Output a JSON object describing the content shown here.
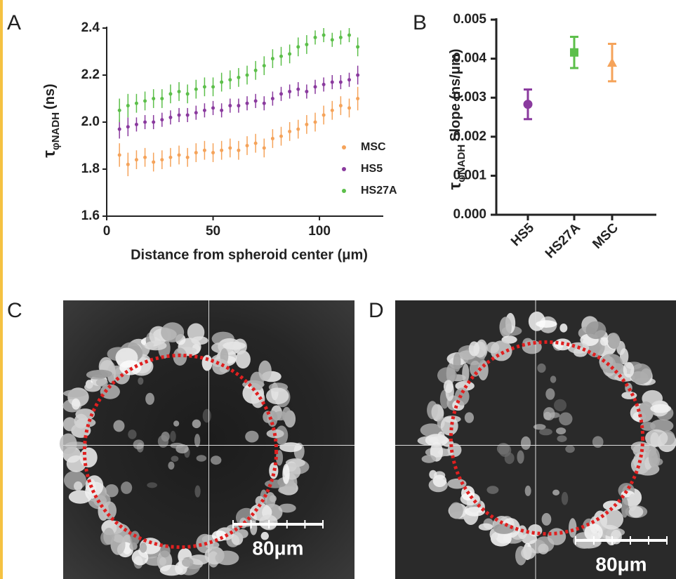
{
  "panels": {
    "labels": [
      "A",
      "B",
      "C",
      "D"
    ],
    "scale_bars": [
      "80μm",
      "80μm"
    ]
  },
  "chart_data": [
    {
      "type": "scatter",
      "x_label": "Distance from spheroid center (μm)",
      "y_label": [
        "τ",
        "φNADH",
        "(ns)"
      ],
      "x": [
        6,
        10,
        14,
        18,
        22,
        26,
        30,
        34,
        38,
        42,
        46,
        50,
        54,
        58,
        62,
        66,
        70,
        74,
        78,
        82,
        86,
        90,
        94,
        98,
        102,
        106,
        110,
        114,
        118
      ],
      "series": [
        {
          "name": "MSC",
          "color": "#f5a35a",
          "values": [
            1.86,
            1.82,
            1.84,
            1.85,
            1.83,
            1.84,
            1.85,
            1.86,
            1.85,
            1.87,
            1.88,
            1.87,
            1.88,
            1.89,
            1.88,
            1.9,
            1.91,
            1.89,
            1.93,
            1.94,
            1.96,
            1.97,
            1.99,
            2.0,
            2.03,
            2.05,
            2.07,
            2.06,
            2.1
          ],
          "errors": [
            0.05,
            0.05,
            0.04,
            0.04,
            0.04,
            0.04,
            0.04,
            0.04,
            0.04,
            0.04,
            0.04,
            0.04,
            0.04,
            0.04,
            0.04,
            0.04,
            0.04,
            0.04,
            0.04,
            0.04,
            0.04,
            0.04,
            0.04,
            0.04,
            0.04,
            0.04,
            0.04,
            0.04,
            0.05
          ]
        },
        {
          "name": "HS5",
          "color": "#8a3a9e",
          "values": [
            1.97,
            1.98,
            1.99,
            2.0,
            2.0,
            2.01,
            2.02,
            2.03,
            2.03,
            2.04,
            2.05,
            2.06,
            2.05,
            2.07,
            2.07,
            2.08,
            2.09,
            2.08,
            2.1,
            2.12,
            2.13,
            2.14,
            2.13,
            2.15,
            2.16,
            2.17,
            2.17,
            2.18,
            2.2
          ],
          "errors": [
            0.04,
            0.04,
            0.03,
            0.03,
            0.03,
            0.03,
            0.03,
            0.03,
            0.03,
            0.03,
            0.03,
            0.03,
            0.03,
            0.03,
            0.03,
            0.03,
            0.03,
            0.03,
            0.03,
            0.03,
            0.03,
            0.03,
            0.03,
            0.03,
            0.03,
            0.03,
            0.03,
            0.03,
            0.04
          ]
        },
        {
          "name": "HS27A",
          "color": "#5cbf4a",
          "values": [
            2.05,
            2.07,
            2.08,
            2.09,
            2.1,
            2.1,
            2.12,
            2.13,
            2.12,
            2.14,
            2.15,
            2.15,
            2.17,
            2.18,
            2.19,
            2.2,
            2.22,
            2.24,
            2.27,
            2.28,
            2.29,
            2.32,
            2.33,
            2.36,
            2.37,
            2.35,
            2.36,
            2.37,
            2.32
          ],
          "errors": [
            0.05,
            0.05,
            0.04,
            0.04,
            0.04,
            0.04,
            0.04,
            0.04,
            0.04,
            0.04,
            0.04,
            0.04,
            0.04,
            0.04,
            0.04,
            0.04,
            0.04,
            0.04,
            0.04,
            0.04,
            0.04,
            0.04,
            0.04,
            0.03,
            0.03,
            0.03,
            0.03,
            0.03,
            0.04
          ]
        }
      ],
      "xlim": [
        0,
        130
      ],
      "xticks": [
        0,
        50,
        100
      ],
      "ylim": [
        1.6,
        2.4
      ],
      "yticks": [
        1.6,
        1.8,
        {
          "value": 2,
          "label": "2.0"
        },
        2.2,
        2.4
      ],
      "legend": "lower-right"
    },
    {
      "type": "dot",
      "y_label": [
        "τ",
        "φNADH",
        "Slope (ns/μm)"
      ],
      "categories": [
        "HS5",
        "HS27A",
        "MSC"
      ],
      "values": [
        0.00283,
        0.00416,
        0.0039
      ],
      "errors": [
        0.00038,
        0.0004,
        0.00048
      ],
      "colors": [
        "#8a3a9e",
        "#5cbf4a",
        "#f5a35a"
      ],
      "markers": [
        "circle",
        "square",
        "triangle"
      ],
      "ylim": [
        0,
        0.005
      ],
      "yticks": [
        {
          "value": 0,
          "label": "0.000"
        },
        {
          "value": 0.001,
          "label": "0.001"
        },
        {
          "value": 0.002,
          "label": "0.002"
        },
        {
          "value": 0.003,
          "label": "0.003"
        },
        {
          "value": 0.004,
          "label": "0.004"
        },
        {
          "value": 0.005,
          "label": "0.005"
        }
      ]
    }
  ]
}
